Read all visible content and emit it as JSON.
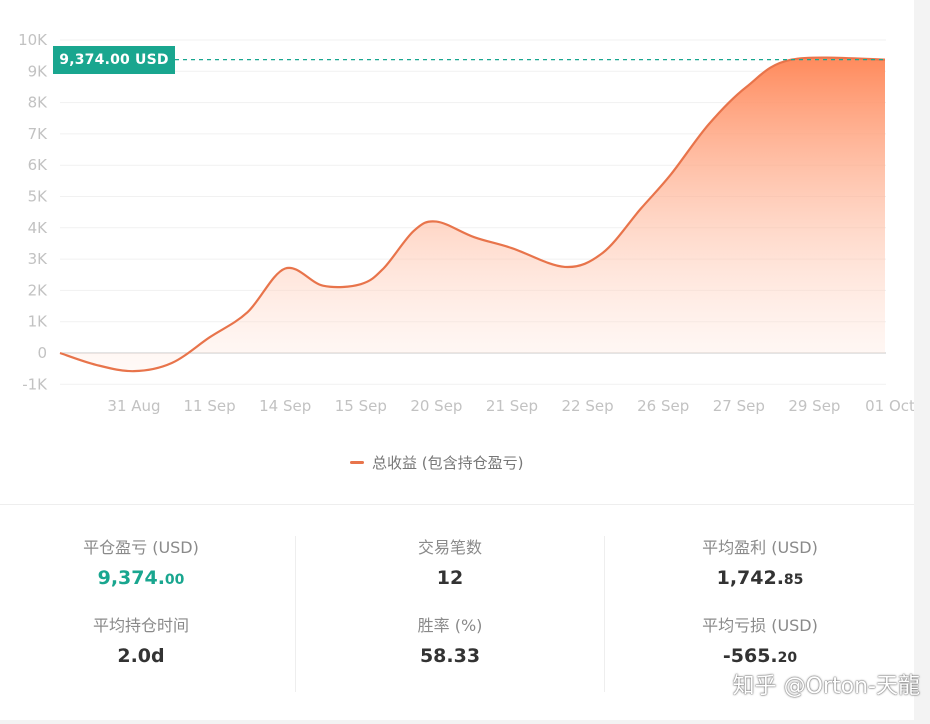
{
  "chart_data": {
    "type": "area",
    "title": "",
    "xlabel": "",
    "ylabel": "",
    "categories": [
      "31 Aug",
      "11 Sep",
      "14 Sep",
      "15 Sep",
      "20 Sep",
      "21 Sep",
      "22 Sep",
      "26 Sep",
      "27 Sep",
      "29 Sep",
      "01 Oct"
    ],
    "y_ticks": [
      "-1K",
      "0",
      "1K",
      "2K",
      "3K",
      "4K",
      "5K",
      "6K",
      "7K",
      "8K",
      "9K",
      "10K"
    ],
    "ylim": [
      -1000,
      10000
    ],
    "grid": true,
    "legend": "bottom-center",
    "series": [
      {
        "name": "总收益 (包含持仓盈亏)",
        "color": "#e8744b",
        "points": [
          [
            -1,
            0
          ],
          [
            -0.5,
            -380
          ],
          [
            0,
            -580
          ],
          [
            0.5,
            -320
          ],
          [
            1,
            500
          ],
          [
            1.5,
            1300
          ],
          [
            2,
            2700
          ],
          [
            2.5,
            2150
          ],
          [
            3,
            2200
          ],
          [
            3.3,
            2700
          ],
          [
            3.7,
            3900
          ],
          [
            4,
            4200
          ],
          [
            4.5,
            3700
          ],
          [
            5,
            3350
          ],
          [
            5.7,
            2750
          ],
          [
            6.2,
            3200
          ],
          [
            6.7,
            4600
          ],
          [
            7.1,
            5700
          ],
          [
            7.6,
            7300
          ],
          [
            8.1,
            8500
          ],
          [
            8.7,
            9374
          ],
          [
            10,
            9374
          ]
        ]
      }
    ],
    "annotations": [
      {
        "label": "9,374.00 USD",
        "value": 9374,
        "color": "#19a68f"
      }
    ]
  },
  "legend_label": "总收益 (包含持仓盈亏)",
  "marker_label": "9,374.00 USD",
  "stats": {
    "closed_pnl": {
      "label": "平仓盈亏 (USD)",
      "int": "9,374.",
      "dec": "00"
    },
    "trade_count": {
      "label": "交易笔数",
      "value": "12"
    },
    "avg_profit": {
      "label": "平均盈利 (USD)",
      "int": "1,742.",
      "dec": "85"
    },
    "avg_hold": {
      "label": "平均持仓时间",
      "value": "2.0d"
    },
    "win_rate": {
      "label": "胜率 (%)",
      "value": "58.33"
    },
    "avg_loss": {
      "label": "平均亏损 (USD)",
      "int": "-565.",
      "dec": "20"
    }
  },
  "watermark": "知乎 @Orton-天龍"
}
